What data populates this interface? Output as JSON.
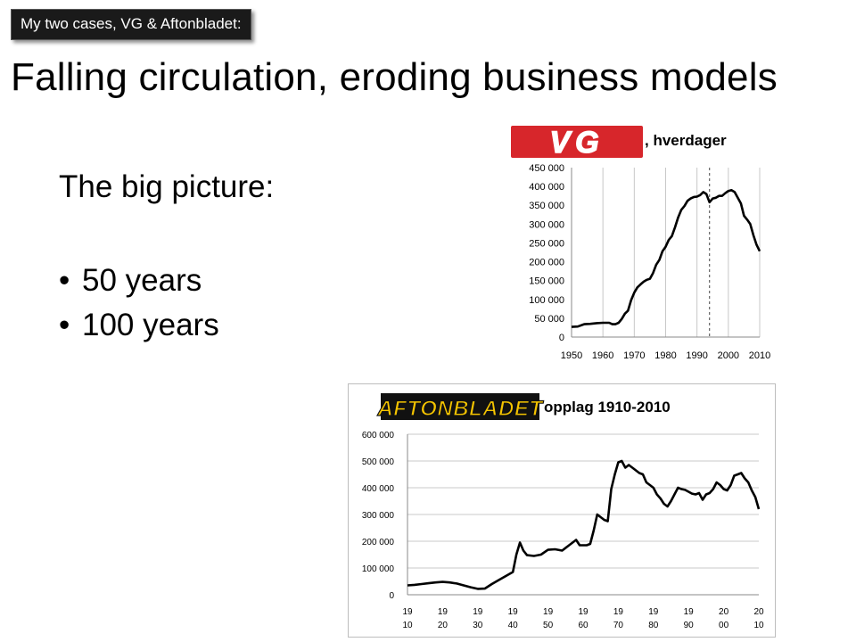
{
  "slide": {
    "tag": "My two cases, VG & Aftonbladet:",
    "title": "Falling circulation, eroding business models",
    "subtitle": "The big picture:",
    "bullets": [
      "50 years",
      "100 years"
    ]
  },
  "chart_data": [
    {
      "type": "line",
      "logo_text": "VG",
      "title": ", hverdager",
      "logo_color": "#d7262b",
      "line_color": "#000000",
      "xlim": [
        1950,
        2010
      ],
      "ylim": [
        0,
        450000
      ],
      "x_ticks": [
        "1950",
        "1960",
        "1970",
        "1980",
        "1990",
        "2000",
        "2010"
      ],
      "x_tick_values": [
        1950,
        1960,
        1970,
        1980,
        1990,
        2000,
        2010
      ],
      "y_ticks": [
        "450 000",
        "400 000",
        "350 000",
        "300 000",
        "250 000",
        "200 000",
        "150 000",
        "100 000",
        "50 000",
        "0"
      ],
      "y_tick_values": [
        450000,
        400000,
        350000,
        300000,
        250000,
        200000,
        150000,
        100000,
        50000,
        0
      ],
      "marker_x": 1994,
      "grid": "vertical",
      "series": [
        {
          "x": [
            1950,
            1952,
            1954,
            1956,
            1958,
            1960,
            1962,
            1963,
            1964,
            1965,
            1966,
            1967,
            1968,
            1969,
            1970,
            1971,
            1972,
            1973,
            1974,
            1975,
            1976,
            1977,
            1978,
            1979,
            1980,
            1981,
            1982,
            1983,
            1984,
            1985,
            1986,
            1987,
            1988,
            1989,
            1990,
            1991,
            1992,
            1993,
            1994,
            1995,
            1996,
            1997,
            1998,
            1999,
            2000,
            2001,
            2002,
            2003,
            2004,
            2005,
            2006,
            2007,
            2008,
            2009,
            2010
          ],
          "y": [
            27000,
            28000,
            34000,
            35000,
            37000,
            38000,
            38000,
            34000,
            34000,
            38000,
            48000,
            62000,
            70000,
            98000,
            118000,
            132000,
            140000,
            147000,
            152000,
            155000,
            170000,
            192000,
            205000,
            228000,
            240000,
            258000,
            268000,
            292000,
            318000,
            338000,
            348000,
            362000,
            368000,
            372000,
            373000,
            377000,
            385000,
            380000,
            358000,
            368000,
            370000,
            375000,
            375000,
            382000,
            388000,
            390000,
            385000,
            370000,
            355000,
            322000,
            312000,
            300000,
            270000,
            245000,
            228000
          ]
        }
      ]
    },
    {
      "type": "line",
      "logo_text": "AFTONBLADET",
      "title": "opplag 1910-2010",
      "logo_color": "#f5c400",
      "line_color": "#000000",
      "xlim": [
        1910,
        2010
      ],
      "ylim": [
        0,
        600000
      ],
      "x_ticks": [
        "19 10",
        "19 20",
        "19 30",
        "19 40",
        "19 50",
        "19 60",
        "19 70",
        "19 80",
        "19 90",
        "20 00",
        "20 10"
      ],
      "x_tick_values": [
        1910,
        1920,
        1930,
        1940,
        1950,
        1960,
        1970,
        1980,
        1990,
        2000,
        2010
      ],
      "y_ticks": [
        "600 000",
        "500 000",
        "400 000",
        "300 000",
        "200 000",
        "100 000",
        "0"
      ],
      "y_tick_values": [
        600000,
        500000,
        400000,
        300000,
        200000,
        100000,
        0
      ],
      "grid": "horizontal",
      "series": [
        {
          "x": [
            1910,
            1912,
            1914,
            1916,
            1918,
            1920,
            1922,
            1924,
            1926,
            1928,
            1930,
            1932,
            1934,
            1936,
            1938,
            1940,
            1941,
            1942,
            1943,
            1944,
            1946,
            1948,
            1950,
            1952,
            1954,
            1956,
            1958,
            1959,
            1960,
            1961,
            1962,
            1963,
            1964,
            1966,
            1967,
            1968,
            1969,
            1970,
            1971,
            1972,
            1973,
            1974,
            1975,
            1976,
            1977,
            1978,
            1979,
            1980,
            1981,
            1982,
            1983,
            1984,
            1985,
            1986,
            1987,
            1988,
            1989,
            1990,
            1991,
            1992,
            1993,
            1994,
            1995,
            1996,
            1997,
            1998,
            1999,
            2000,
            2001,
            2002,
            2003,
            2004,
            2005,
            2006,
            2007,
            2008,
            2009,
            2010
          ],
          "y": [
            35000,
            37000,
            40000,
            43000,
            46000,
            48000,
            46000,
            42000,
            35000,
            28000,
            22000,
            23000,
            40000,
            55000,
            70000,
            85000,
            150000,
            195000,
            165000,
            148000,
            145000,
            150000,
            168000,
            170000,
            165000,
            185000,
            205000,
            185000,
            185000,
            185000,
            190000,
            240000,
            300000,
            280000,
            275000,
            395000,
            450000,
            495000,
            500000,
            475000,
            485000,
            475000,
            465000,
            455000,
            450000,
            420000,
            410000,
            400000,
            375000,
            360000,
            340000,
            330000,
            350000,
            375000,
            400000,
            395000,
            392000,
            385000,
            378000,
            375000,
            380000,
            355000,
            375000,
            380000,
            395000,
            420000,
            410000,
            395000,
            390000,
            410000,
            445000,
            450000,
            455000,
            435000,
            420000,
            390000,
            365000,
            320000
          ]
        }
      ]
    }
  ]
}
